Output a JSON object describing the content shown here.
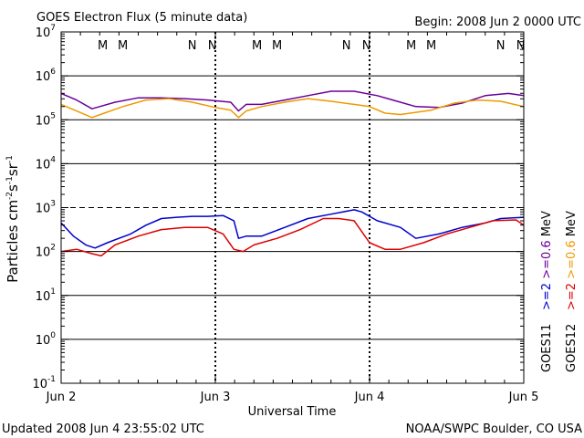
{
  "chart_data": {
    "type": "line",
    "title": "GOES Electron Flux (5 minute data)",
    "begin": "Begin: 2008 Jun 2 0000 UTC",
    "xlabel": "Universal Time",
    "ylabel": "Particles cm⁻²s⁻¹sr⁻¹",
    "ylabel_parts": [
      "Particles cm",
      "-2",
      "s",
      "-1",
      "sr",
      "-1"
    ],
    "yscale": "log",
    "ylim_exp": [
      -1,
      7
    ],
    "y_ticks": [
      {
        "base": "10",
        "exp": "7"
      },
      {
        "base": "10",
        "exp": "6"
      },
      {
        "base": "10",
        "exp": "5"
      },
      {
        "base": "10",
        "exp": "4"
      },
      {
        "base": "10",
        "exp": "3"
      },
      {
        "base": "10",
        "exp": "2"
      },
      {
        "base": "10",
        "exp": "1"
      },
      {
        "base": "10",
        "exp": "0"
      },
      {
        "base": "10",
        "exp": "-1"
      }
    ],
    "x_unit": "days since Jun 2 00:00 UTC",
    "xlim": [
      0,
      3
    ],
    "x_ticks": [
      {
        "x": 0,
        "label": "Jun 2"
      },
      {
        "x": 1,
        "label": "Jun 3"
      },
      {
        "x": 2,
        "label": "Jun 4"
      },
      {
        "x": 3,
        "label": "Jun 5"
      }
    ],
    "threshold_log10": 3,
    "markers": [
      {
        "x": 0.27,
        "label": "M",
        "color": "#dd0000"
      },
      {
        "x": 0.4,
        "label": "M",
        "color": "#0000cc"
      },
      {
        "x": 0.85,
        "label": "N",
        "color": "#dd0000"
      },
      {
        "x": 0.98,
        "label": "N",
        "color": "#0000cc"
      },
      {
        "x": 1.27,
        "label": "M",
        "color": "#dd0000"
      },
      {
        "x": 1.4,
        "label": "M",
        "color": "#0000cc"
      },
      {
        "x": 1.85,
        "label": "N",
        "color": "#dd0000"
      },
      {
        "x": 1.98,
        "label": "N",
        "color": "#0000cc"
      },
      {
        "x": 2.27,
        "label": "M",
        "color": "#dd0000"
      },
      {
        "x": 2.4,
        "label": "M",
        "color": "#0000cc"
      },
      {
        "x": 2.85,
        "label": "N",
        "color": "#dd0000"
      },
      {
        "x": 2.98,
        "label": "N",
        "color": "#0000cc"
      }
    ],
    "series": [
      {
        "name": "GOES11 >=0.6 MeV",
        "color": "#6a0099",
        "x": [
          0,
          0.1,
          0.2,
          0.25,
          0.35,
          0.5,
          0.65,
          0.8,
          0.95,
          1.1,
          1.15,
          1.2,
          1.3,
          1.45,
          1.6,
          1.75,
          1.9,
          2.05,
          2.15,
          2.3,
          2.45,
          2.6,
          2.75,
          2.9,
          3.0
        ],
        "log_y": [
          5.6,
          5.45,
          5.25,
          5.3,
          5.4,
          5.5,
          5.5,
          5.48,
          5.45,
          5.4,
          5.2,
          5.35,
          5.35,
          5.45,
          5.55,
          5.65,
          5.65,
          5.55,
          5.45,
          5.3,
          5.28,
          5.38,
          5.55,
          5.6,
          5.55
        ]
      },
      {
        "name": "GOES12 >=0.6 MeV",
        "color": "#ee9a00",
        "x": [
          0,
          0.1,
          0.2,
          0.28,
          0.4,
          0.55,
          0.7,
          0.85,
          1.0,
          1.1,
          1.15,
          1.2,
          1.3,
          1.45,
          1.6,
          1.75,
          1.9,
          2.0,
          2.1,
          2.2,
          2.4,
          2.55,
          2.7,
          2.85,
          3.0
        ],
        "log_y": [
          5.35,
          5.2,
          5.05,
          5.15,
          5.3,
          5.45,
          5.48,
          5.4,
          5.28,
          5.22,
          5.05,
          5.2,
          5.3,
          5.4,
          5.48,
          5.42,
          5.35,
          5.3,
          5.15,
          5.12,
          5.22,
          5.38,
          5.45,
          5.42,
          5.3
        ]
      },
      {
        "name": "GOES11 >=2 MeV",
        "color": "#0000cc",
        "x": [
          0,
          0.08,
          0.16,
          0.22,
          0.3,
          0.45,
          0.55,
          0.65,
          0.75,
          0.85,
          0.95,
          1.05,
          1.12,
          1.15,
          1.2,
          1.3,
          1.45,
          1.6,
          1.75,
          1.9,
          1.95,
          2.05,
          2.2,
          2.3,
          2.45,
          2.6,
          2.75,
          2.85,
          3.0
        ],
        "log_y": [
          2.65,
          2.35,
          2.15,
          2.08,
          2.2,
          2.4,
          2.6,
          2.75,
          2.78,
          2.8,
          2.8,
          2.82,
          2.7,
          2.3,
          2.35,
          2.35,
          2.55,
          2.75,
          2.85,
          2.95,
          2.9,
          2.7,
          2.55,
          2.3,
          2.4,
          2.55,
          2.65,
          2.75,
          2.78
        ]
      },
      {
        "name": "GOES12 >=2 MeV",
        "color": "#dd0000",
        "x": [
          0,
          0.1,
          0.2,
          0.26,
          0.35,
          0.5,
          0.65,
          0.8,
          0.95,
          1.05,
          1.12,
          1.18,
          1.25,
          1.4,
          1.55,
          1.7,
          1.8,
          1.9,
          2.0,
          2.1,
          2.2,
          2.35,
          2.5,
          2.65,
          2.8,
          2.95,
          3.0
        ],
        "log_y": [
          2.0,
          2.05,
          1.95,
          1.9,
          2.15,
          2.35,
          2.5,
          2.55,
          2.55,
          2.4,
          2.05,
          2.0,
          2.15,
          2.3,
          2.5,
          2.75,
          2.75,
          2.7,
          2.2,
          2.05,
          2.05,
          2.2,
          2.4,
          2.55,
          2.7,
          2.72,
          2.6
        ]
      }
    ],
    "legend": {
      "left_column": {
        "satellite": "GOES11",
        "low": ">=2",
        "high": ">=0.6",
        "low_color": "#0000cc",
        "high_color": "#6a0099"
      },
      "right_column": {
        "satellite": "GOES12",
        "low": ">=2",
        "high": ">=0.6",
        "low_color": "#dd0000",
        "high_color": "#ee9a00"
      },
      "unit": "MeV"
    },
    "grid": true
  },
  "footer": {
    "updated": "Updated 2008 Jun  4 23:55:02 UTC",
    "source": "NOAA/SWPC Boulder, CO USA"
  }
}
